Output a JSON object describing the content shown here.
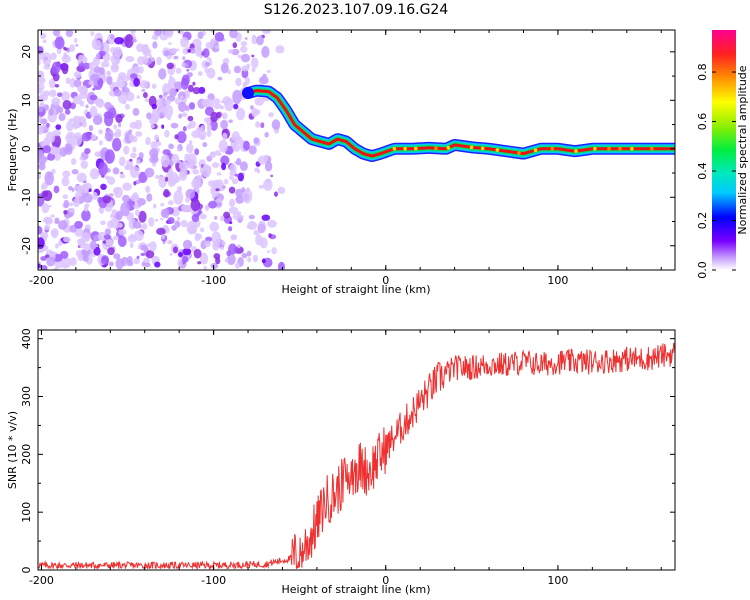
{
  "figure_title": "S126.2023.107.09.16.G24",
  "chart_data": [
    {
      "type": "heatmap",
      "xlabel": "Height of straight line (km)",
      "ylabel": "Frequency (Hz)",
      "xlim": [
        -202,
        168
      ],
      "ylim": [
        -25,
        24.5
      ],
      "xticks": [
        -200,
        -100,
        0,
        100
      ],
      "yticks": [
        -20,
        -10,
        0,
        10,
        20
      ],
      "trace": {
        "x": [
          -80,
          -75,
          -68,
          -63,
          -58,
          -53,
          -48,
          -43,
          -38,
          -33,
          -28,
          -23,
          -18,
          -13,
          -8,
          -3,
          5,
          15,
          25,
          35,
          40,
          50,
          60,
          70,
          80,
          90,
          100,
          110,
          120,
          130,
          140,
          150,
          160,
          168
        ],
        "y": [
          11.5,
          12,
          11.8,
          10.5,
          8,
          5,
          3.5,
          2,
          1.5,
          1,
          2,
          1.5,
          0,
          -1,
          -1.5,
          -1,
          0,
          0,
          0.2,
          0,
          0.8,
          0.3,
          0,
          -0.5,
          -1,
          0,
          0,
          -0.5,
          0,
          0,
          0,
          0,
          0,
          0
        ]
      },
      "noise_region": {
        "x_range": [
          -202,
          -60
        ],
        "y_range": [
          -25,
          24.5
        ]
      },
      "colorbar": {
        "label": "Normalized spectral amplitude",
        "ticks": [
          "0.0",
          "0.2",
          "0.4",
          "0.6",
          "0.8"
        ],
        "tick_values": [
          0.0,
          0.2,
          0.4,
          0.6,
          0.8
        ],
        "range": [
          0,
          0.97
        ]
      }
    },
    {
      "type": "line",
      "xlabel": "Height of straight line (km)",
      "ylabel": "SNR (10 * v/v)",
      "xlim": [
        -202,
        168
      ],
      "ylim": [
        0,
        415
      ],
      "xticks": [
        -200,
        -100,
        0,
        100
      ],
      "yticks": [
        0,
        100,
        200,
        300,
        400
      ],
      "series": [
        {
          "color": "#ee3030",
          "x": [
            -202,
            -150,
            -100,
            -70,
            -55,
            -50,
            -45,
            -40,
            -35,
            -30,
            -25,
            -20,
            -15,
            -10,
            -5,
            0,
            5,
            10,
            15,
            20,
            25,
            30,
            35,
            40,
            50,
            60,
            70,
            80,
            90,
            100,
            110,
            120,
            130,
            140,
            150,
            160,
            168
          ],
          "y": [
            8,
            8,
            8,
            10,
            20,
            30,
            50,
            80,
            120,
            130,
            150,
            170,
            180,
            170,
            190,
            210,
            230,
            250,
            270,
            290,
            310,
            330,
            340,
            350,
            350,
            355,
            355,
            360,
            355,
            360,
            360,
            360,
            362,
            365,
            365,
            370,
            375
          ]
        }
      ]
    }
  ]
}
